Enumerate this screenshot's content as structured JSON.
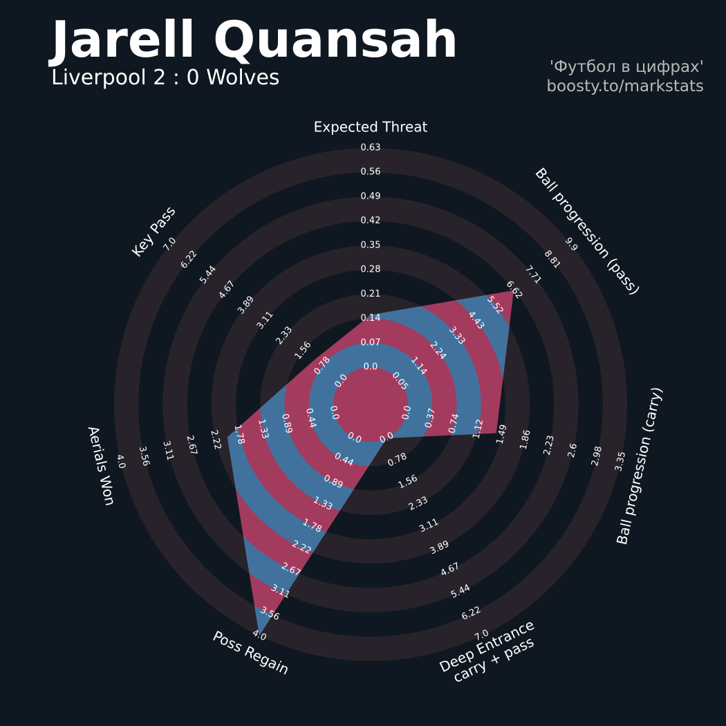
{
  "chart_data": {
    "type": "radar",
    "title": "Jarell Quansah",
    "subtitle": "Liverpool 2 : 0 Wolves",
    "credits": [
      "'Футбол в цифрах'",
      "boosty.to/markstats"
    ],
    "ring_color": "#28232a",
    "fill_colors": [
      "#a33b5e",
      "#41729e"
    ],
    "axes": [
      {
        "name": [
          "Expected Threat"
        ],
        "value": 0.15,
        "ticks": [
          {
            "value": 0,
            "label": "0.0"
          },
          0.07,
          0.14,
          0.21,
          0.28,
          0.35,
          0.42,
          0.49,
          0.56,
          0.63
        ]
      },
      {
        "name": [
          "Ball progression (pass)"
        ],
        "value": 6.6,
        "ticks": [
          0.05,
          1.14,
          2.24,
          3.33,
          4.43,
          5.52,
          6.62,
          7.71,
          8.81,
          9.9
        ]
      },
      {
        "name": [
          "Ball progression (carry)"
        ],
        "value": 1.4,
        "ticks": [
          {
            "value": 0,
            "label": "0.0"
          },
          0.37,
          0.74,
          1.12,
          1.49,
          1.86,
          2.23,
          2.6,
          2.98,
          3.35
        ]
      },
      {
        "name": [
          "Deep Entrance",
          "carry + pass"
        ],
        "value": 0,
        "ticks": [
          {
            "value": 0,
            "label": "0.0"
          },
          0.78,
          1.56,
          2.33,
          3.11,
          3.89,
          4.67,
          5.44,
          6.22,
          {
            "value": 7,
            "label": "7.0"
          }
        ]
      },
      {
        "name": [
          "Poss Regain"
        ],
        "value": 4,
        "ticks": [
          {
            "value": 0,
            "label": "0.0"
          },
          0.44,
          0.89,
          1.33,
          1.78,
          2.22,
          2.67,
          3.11,
          3.56,
          {
            "value": 4,
            "label": "4.0"
          }
        ]
      },
      {
        "name": [
          "Aerials Won"
        ],
        "value": 2,
        "ticks": [
          {
            "value": 0,
            "label": "0.0"
          },
          0.44,
          0.89,
          1.33,
          1.78,
          2.22,
          2.67,
          3.11,
          3.56,
          {
            "value": 4,
            "label": "4.0"
          }
        ]
      },
      {
        "name": [
          "Key Pass"
        ],
        "value": 1.1,
        "ticks": [
          {
            "value": 0,
            "label": "0.0"
          },
          0.78,
          1.56,
          2.33,
          3.11,
          3.89,
          4.67,
          5.44,
          6.22,
          {
            "value": 7,
            "label": "7.0"
          }
        ]
      }
    ]
  }
}
